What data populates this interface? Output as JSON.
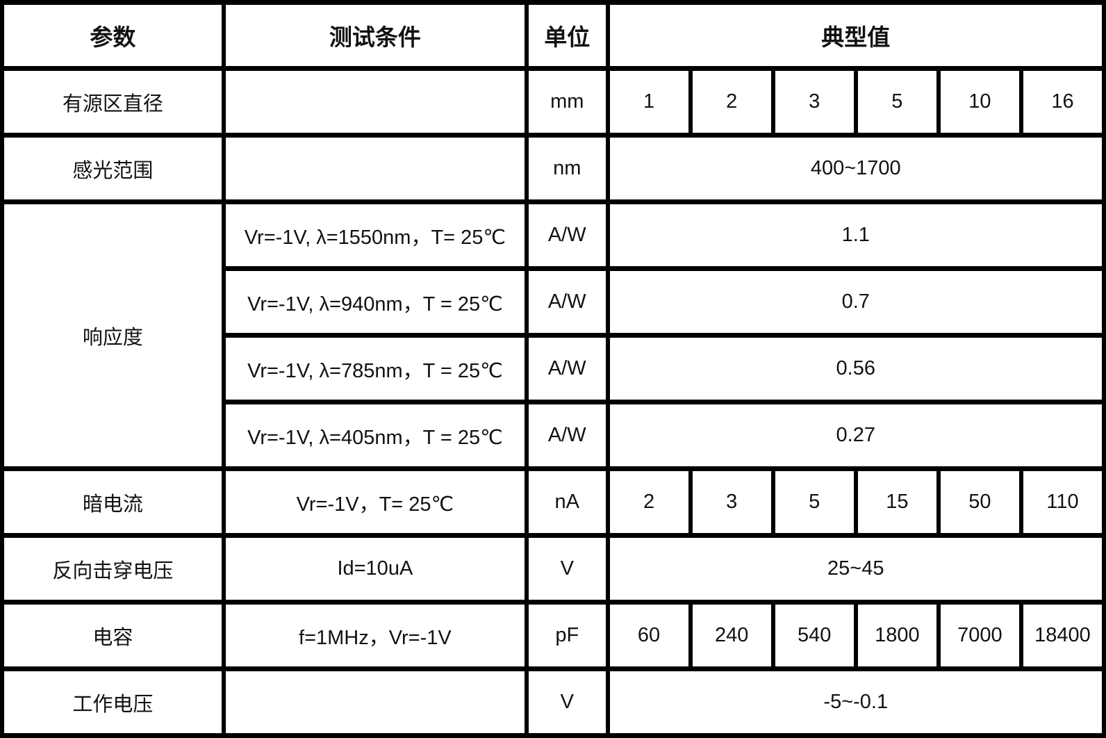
{
  "colors": {
    "border": "#000000",
    "background": "#ffffff",
    "text": "#111111"
  },
  "table": {
    "headers": {
      "param": "参数",
      "conditions": "测试条件",
      "unit": "单位",
      "typical": "典型值"
    },
    "typical_subcolumn_count": 6,
    "rows": [
      {
        "param": "有源区直径",
        "conditions": "",
        "unit": "mm",
        "values": [
          "1",
          "2",
          "3",
          "5",
          "10",
          "16"
        ],
        "span_all": false
      },
      {
        "param": "感光范围",
        "conditions": "",
        "unit": "nm",
        "values": [
          "400~1700"
        ],
        "span_all": true
      },
      {
        "param": "响应度",
        "param_rowspan": 4,
        "conditions": "Vr=-1V, λ=1550nm，T= 25℃",
        "unit": "A/W",
        "values": [
          "1.1"
        ],
        "span_all": true
      },
      {
        "conditions": "Vr=-1V, λ=940nm，T = 25℃",
        "unit": "A/W",
        "values": [
          "0.7"
        ],
        "span_all": true
      },
      {
        "conditions": "Vr=-1V, λ=785nm，T = 25℃",
        "unit": "A/W",
        "values": [
          "0.56"
        ],
        "span_all": true
      },
      {
        "conditions": "Vr=-1V, λ=405nm，T = 25℃",
        "unit": "A/W",
        "values": [
          "0.27"
        ],
        "span_all": true
      },
      {
        "param": "暗电流",
        "conditions": "Vr=-1V，T= 25℃",
        "unit": "nA",
        "values": [
          "2",
          "3",
          "5",
          "15",
          "50",
          "110"
        ],
        "span_all": false
      },
      {
        "param": "反向击穿电压",
        "conditions": "Id=10uA",
        "unit": "V",
        "values": [
          "25~45"
        ],
        "span_all": true
      },
      {
        "param": "电容",
        "conditions": "f=1MHz，Vr=-1V",
        "unit": "pF",
        "values": [
          "60",
          "240",
          "540",
          "1800",
          "7000",
          "18400"
        ],
        "span_all": false
      },
      {
        "param": "工作电压",
        "conditions": "",
        "unit": "V",
        "values": [
          "-5~-0.1"
        ],
        "span_all": true
      }
    ]
  }
}
